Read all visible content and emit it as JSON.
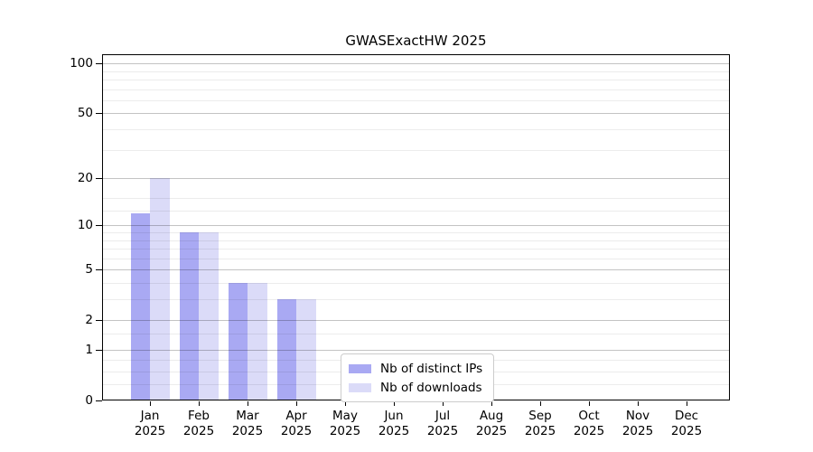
{
  "chart_data": {
    "type": "bar",
    "title": "GWASExactHW 2025",
    "categories": [
      "Jan 2025",
      "Feb 2025",
      "Mar 2025",
      "Apr 2025",
      "May 2025",
      "Jun 2025",
      "Jul 2025",
      "Aug 2025",
      "Sep 2025",
      "Oct 2025",
      "Nov 2025",
      "Dec 2025"
    ],
    "x_tick_months": [
      "Jan",
      "Feb",
      "Mar",
      "Apr",
      "May",
      "Jun",
      "Jul",
      "Aug",
      "Sep",
      "Oct",
      "Nov",
      "Dec"
    ],
    "x_tick_year": "2025",
    "series": [
      {
        "name": "Nb of distinct IPs",
        "color": "#a9a9f3",
        "values": [
          12,
          9,
          4,
          3,
          0,
          0,
          0,
          0,
          0,
          0,
          0,
          0
        ]
      },
      {
        "name": "Nb of downloads",
        "color": "#dbdbf8",
        "values": [
          20,
          9,
          4,
          3,
          0,
          0,
          0,
          0,
          0,
          0,
          0,
          0
        ]
      }
    ],
    "y_axis": {
      "scale": "log1p",
      "tick_labels": [
        "100",
        "50",
        "20",
        "10",
        "5",
        "2",
        "1",
        "0"
      ],
      "ticks": [
        100,
        50,
        20,
        10,
        5,
        2,
        1,
        0
      ],
      "minor_gridlines": [
        0.25,
        0.5,
        0.75,
        1.5,
        3,
        4,
        6,
        7,
        8,
        9,
        12.5,
        15,
        30,
        40,
        60,
        70,
        80,
        90
      ],
      "range": [
        0,
        100
      ]
    },
    "grid": true,
    "legend_position": "bottom-center",
    "colors": {
      "bar_dark": "#a9a9f3",
      "bar_light": "#dbdbf8",
      "gridline_major": "#c3c3c3",
      "gridline_minor": "#ececec",
      "spine": "#000000",
      "legend_border": "#cccccc"
    }
  }
}
